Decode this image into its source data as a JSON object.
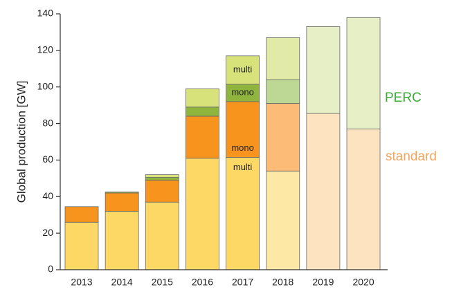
{
  "chart_data": {
    "type": "stacked-bar",
    "y_label": "Global production  [GW]",
    "categories": [
      "2013",
      "2014",
      "2015",
      "2016",
      "2017",
      "2018",
      "2019",
      "2020"
    ],
    "series": [
      {
        "name": "multi",
        "values": [
          26,
          32,
          37,
          61,
          61.5,
          54,
          null,
          null
        ],
        "colors": [
          "#fdd865",
          "#fdd865",
          "#fdd865",
          "#fdd865",
          "#fdd865",
          "#fee8a6",
          null,
          null
        ],
        "label_at": "2017"
      },
      {
        "name": "mono",
        "values": [
          8.5,
          10,
          12,
          23,
          30.5,
          37,
          null,
          null
        ],
        "colors": [
          "#f7941d",
          "#f7941d",
          "#f7941d",
          "#f7941d",
          "#f7941d",
          "#fdbb78",
          null,
          null
        ],
        "label_at": "2017"
      },
      {
        "name": "mono",
        "values": [
          null,
          0.5,
          1.5,
          5,
          9.5,
          13,
          null,
          null
        ],
        "colors": [
          null,
          "#8fb53e",
          "#8fb53e",
          "#8fb53e",
          "#8fb53e",
          "#bcd894",
          null,
          null
        ],
        "label_at": "2017"
      },
      {
        "name": "multi",
        "values": [
          null,
          null,
          1.5,
          10,
          15.5,
          23,
          null,
          null
        ],
        "colors": [
          null,
          null,
          "#d7e27a",
          "#d7e27a",
          "#d7e27a",
          "#e2eaa8",
          null,
          null
        ],
        "label_at": "2017"
      },
      {
        "name": "standard",
        "values": [
          null,
          null,
          null,
          null,
          null,
          null,
          85.5,
          77
        ],
        "color": "#fde3bf",
        "text_color": "#f5a55a"
      },
      {
        "name": "PERC",
        "values": [
          null,
          null,
          null,
          null,
          null,
          null,
          47.5,
          61
        ],
        "color": "#e6efc6",
        "text_color": "#3aaa35"
      }
    ],
    "ylim": [
      0,
      140
    ],
    "yticks": [
      0,
      20,
      40,
      60,
      80,
      100,
      120,
      140
    ]
  }
}
